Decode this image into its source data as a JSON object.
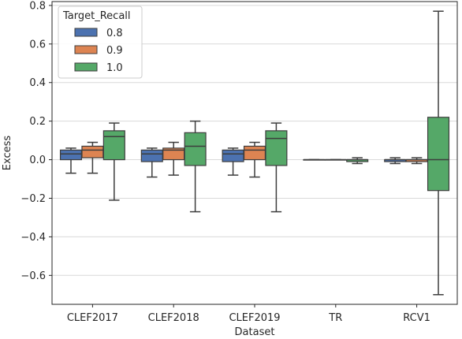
{
  "chart_data": {
    "type": "box",
    "xlabel": "Dataset",
    "ylabel": "Excess",
    "categories": [
      "CLEF2017",
      "CLEF2018",
      "CLEF2019",
      "TR",
      "RCV1"
    ],
    "ylim": [
      -0.75,
      0.82
    ],
    "yticks": [
      -0.6,
      -0.4,
      -0.2,
      0.0,
      0.2,
      0.4,
      0.6,
      0.8
    ],
    "ytick_labels": [
      "−0.6",
      "−0.4",
      "−0.2",
      "0.0",
      "0.2",
      "0.4",
      "0.6",
      "0.8"
    ],
    "grid": "horizontal",
    "legend": {
      "title": "Target_Recall",
      "position": "top-left"
    },
    "series": [
      {
        "name": "0.8",
        "color": "#4c72b0",
        "boxes": [
          {
            "whislo": -0.07,
            "q1": 0.0,
            "med": 0.03,
            "q3": 0.05,
            "whishi": 0.06
          },
          {
            "whislo": -0.09,
            "q1": -0.01,
            "med": 0.03,
            "q3": 0.05,
            "whishi": 0.06
          },
          {
            "whislo": -0.08,
            "q1": -0.01,
            "med": 0.03,
            "q3": 0.05,
            "whishi": 0.06
          },
          {
            "whislo": 0.0,
            "q1": 0.0,
            "med": 0.0,
            "q3": 0.0,
            "whishi": 0.0
          },
          {
            "whislo": -0.02,
            "q1": -0.01,
            "med": 0.0,
            "q3": 0.0,
            "whishi": 0.01
          }
        ]
      },
      {
        "name": "0.9",
        "color": "#dd8452",
        "boxes": [
          {
            "whislo": -0.07,
            "q1": 0.01,
            "med": 0.05,
            "q3": 0.07,
            "whishi": 0.09
          },
          {
            "whislo": -0.08,
            "q1": 0.0,
            "med": 0.05,
            "q3": 0.06,
            "whishi": 0.09
          },
          {
            "whislo": -0.09,
            "q1": 0.0,
            "med": 0.05,
            "q3": 0.07,
            "whishi": 0.09
          },
          {
            "whislo": 0.0,
            "q1": 0.0,
            "med": 0.0,
            "q3": 0.0,
            "whishi": 0.0
          },
          {
            "whislo": -0.02,
            "q1": -0.01,
            "med": 0.0,
            "q3": 0.0,
            "whishi": 0.01
          }
        ]
      },
      {
        "name": "1.0",
        "color": "#55a868",
        "boxes": [
          {
            "whislo": -0.21,
            "q1": 0.0,
            "med": 0.12,
            "q3": 0.15,
            "whishi": 0.19
          },
          {
            "whislo": -0.27,
            "q1": -0.03,
            "med": 0.07,
            "q3": 0.14,
            "whishi": 0.2
          },
          {
            "whislo": -0.27,
            "q1": -0.03,
            "med": 0.11,
            "q3": 0.15,
            "whishi": 0.19
          },
          {
            "whislo": -0.02,
            "q1": -0.01,
            "med": 0.0,
            "q3": 0.0,
            "whishi": 0.01
          },
          {
            "whislo": -0.7,
            "q1": -0.16,
            "med": 0.0,
            "q3": 0.22,
            "whishi": 0.77
          }
        ]
      }
    ]
  }
}
